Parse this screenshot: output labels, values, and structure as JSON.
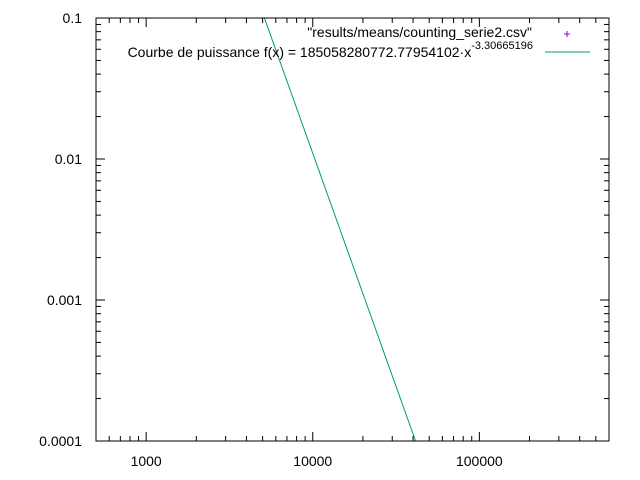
{
  "chart_data": {
    "type": "line",
    "x_scale": "log",
    "y_scale": "log",
    "xlim": [
      500,
      600000
    ],
    "ylim": [
      0.0001,
      0.1
    ],
    "x_ticks": [
      {
        "value": 1000,
        "label": "1000"
      },
      {
        "value": 10000,
        "label": "10000"
      },
      {
        "value": 100000,
        "label": "100000"
      }
    ],
    "y_ticks": [
      {
        "value": 0.1,
        "label": "0.1"
      },
      {
        "value": 0.01,
        "label": "0.01"
      },
      {
        "value": 0.001,
        "label": "0.001"
      },
      {
        "value": 0.0001,
        "label": "0.0001"
      }
    ],
    "grid": false,
    "legend_position": "top-right",
    "series": [
      {
        "name": "\"results/means/counting_serie2.csv\"",
        "kind": "points",
        "marker": "+",
        "color": "#9400d3",
        "points": []
      },
      {
        "name": "Courbe de puissance f(x) = 185058280772.77954102·x",
        "name_exponent": "-3.30665196",
        "kind": "function",
        "color": "#009e73",
        "coefficient": 185058280772.77954,
        "exponent": -3.30665196
      }
    ]
  }
}
